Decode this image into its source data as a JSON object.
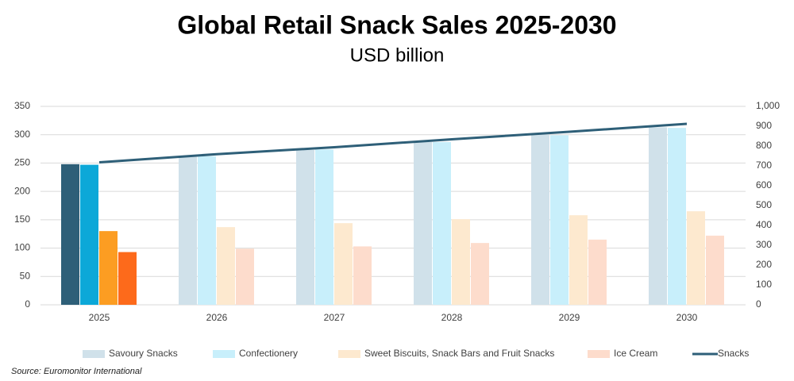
{
  "chart_data": {
    "type": "combo",
    "title": "Global Retail Snack Sales 2025-2030",
    "subtitle": "USD billion",
    "source": "Source: Euromonitor International",
    "categories": [
      "2025",
      "2026",
      "2027",
      "2028",
      "2029",
      "2030"
    ],
    "series": [
      {
        "name": "Savoury Snacks",
        "type": "bar",
        "color": "#d0e1ea",
        "colors": [
          "#2e5f78",
          "#d0e1ea",
          "#d0e1ea",
          "#d0e1ea",
          "#d0e1ea",
          "#d0e1ea"
        ],
        "values": [
          248,
          261,
          273,
          287,
          300,
          313
        ]
      },
      {
        "name": "Confectionery",
        "type": "bar",
        "color": "#c8effb",
        "colors": [
          "#0ca8d8",
          "#c8effb",
          "#c8effb",
          "#c8effb",
          "#c8effb",
          "#c8effb"
        ],
        "values": [
          247,
          262,
          274,
          287,
          299,
          312
        ]
      },
      {
        "name": "Sweet Biscuits, Snack Bars and Fruit Snacks",
        "type": "bar",
        "color": "#fde9cf",
        "colors": [
          "#fc9d22",
          "#fde9cf",
          "#fde9cf",
          "#fde9cf",
          "#fde9cf",
          "#fde9cf"
        ],
        "values": [
          130,
          137,
          144,
          151,
          158,
          165
        ]
      },
      {
        "name": "Ice Cream",
        "type": "bar",
        "color": "#fddccc",
        "colors": [
          "#fd6a1b",
          "#fddccc",
          "#fddccc",
          "#fddccc",
          "#fddccc",
          "#fddccc"
        ],
        "values": [
          93,
          99,
          103,
          109,
          115,
          122
        ]
      },
      {
        "name": "Snacks",
        "type": "line",
        "axis": "y2",
        "color": "#2e5f78",
        "values": [
          718,
          759,
          794,
          834,
          872,
          912
        ]
      }
    ],
    "ylim": [
      0,
      350
    ],
    "yticks": [
      0,
      50,
      100,
      150,
      200,
      250,
      300,
      350
    ],
    "y2lim": [
      0,
      1000
    ],
    "y2ticks": [
      0,
      100,
      200,
      300,
      400,
      500,
      600,
      700,
      800,
      900,
      {
        "value": 1000,
        "label": "1,000"
      }
    ],
    "grid": true,
    "legend": "bottom"
  }
}
